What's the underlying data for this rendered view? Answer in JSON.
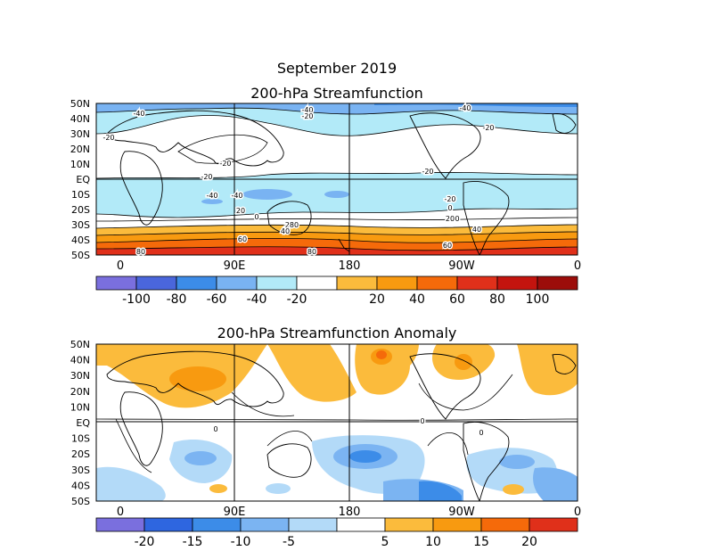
{
  "header": {
    "month": "September 2019",
    "top_title": "200-hPa Streamfunction",
    "bottom_title": "200-hPa Streamfunction Anomaly"
  },
  "lat_labels": [
    "50N",
    "40N",
    "30N",
    "20N",
    "10N",
    "EQ",
    "10S",
    "20S",
    "30S",
    "40S",
    "50S"
  ],
  "lon_labels": [
    "0",
    "90E",
    "180",
    "90W",
    "0"
  ],
  "top_map": {
    "contour_labels": [
      "-40",
      "-40",
      "-40",
      "-20",
      "-20",
      "-20",
      "-20",
      "-20",
      "-20",
      "-20",
      "-40",
      "-40",
      "0",
      "0",
      "0",
      "20",
      "20",
      "20",
      "40",
      "40",
      "60",
      "60",
      "80",
      "80",
      "80"
    ],
    "colorbar": {
      "labels": [
        "-100",
        "-80",
        "-60",
        "-40",
        "-20",
        "20",
        "40",
        "60",
        "80",
        "100"
      ],
      "colors": [
        "#7a6fde",
        "#4a66dc",
        "#3c8ce8",
        "#79b3f2",
        "#b2eaf8",
        "#ffffff",
        "#fbbb3c",
        "#f89a10",
        "#f56a0a",
        "#e0301a",
        "#c4140e",
        "#9c0d0a"
      ]
    }
  },
  "bottom_map": {
    "contour_labels": [
      "0",
      "0",
      "0"
    ],
    "colorbar": {
      "labels": [
        "-20",
        "-15",
        "-10",
        "-5",
        "5",
        "10",
        "15",
        "20"
      ],
      "colors": [
        "#7a6fde",
        "#2e66e0",
        "#3c8ce8",
        "#7bb4f2",
        "#b3daf8",
        "#ffffff",
        "#fbbb3c",
        "#f89a10",
        "#f56a0a",
        "#e0301a"
      ]
    }
  }
}
